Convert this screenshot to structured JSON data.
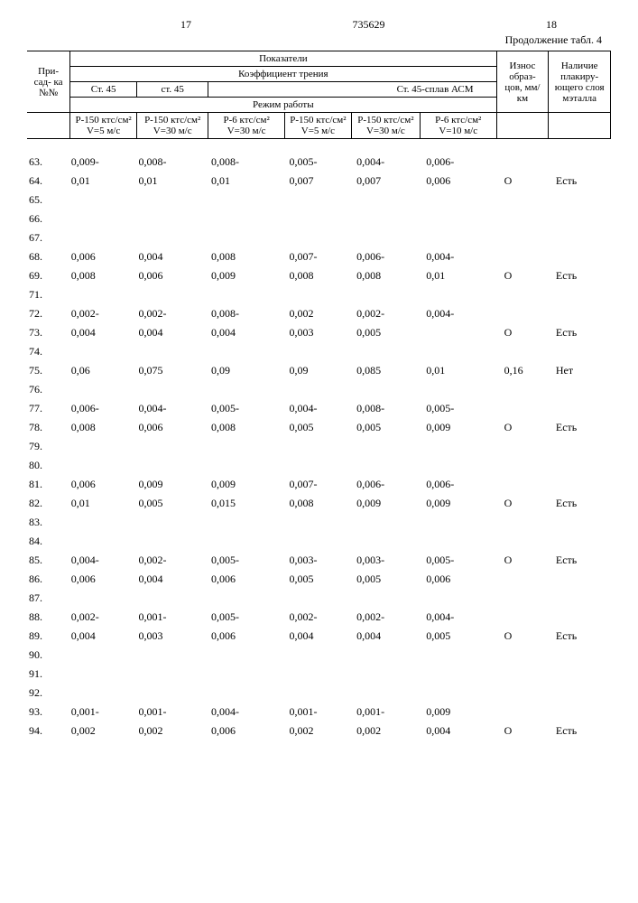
{
  "page_left": "17",
  "doc_num": "735629",
  "page_right": "18",
  "continuation": "Продолжение табл. 4",
  "header": {
    "col_additive": "При-\nсад-\nка\n№№",
    "pokazateli": "Показатели",
    "coef_friction": "Коэффициент трения",
    "wear": "Износ образ-\nцов,\nмм/км",
    "layer": "Наличие плакиру-\nющего\nслоя\nмэталла",
    "st45a": "Ст. 45",
    "st45b": "ст. 45",
    "st45acm": "Ст. 45-сплав АСМ",
    "mode": "Режим работы",
    "m1": "Р-150\nктс/см²\nV=5 м/с",
    "m2": "Р-150\nктс/см²\nV=30 м/с",
    "m3": "Р-6 ктс/см²\nV=30 м/с",
    "m4": "Р-150\nктс/см²\nV=5 м/с",
    "m5": "Р-150\nктс/см²\nV=30 м/с",
    "m6": "Р-6 ктс/см²\nV=10 м/с"
  },
  "rows": [
    [
      "63.",
      "0,009-",
      "0,008-",
      "0,008-",
      "0,005-",
      "0,004-",
      "0,006-",
      "",
      ""
    ],
    [
      "64.",
      "0,01",
      "0,01",
      "0,01",
      "0,007",
      "0,007",
      "0,006",
      "О",
      "Есть"
    ],
    [
      "65.",
      "",
      "",
      "",
      "",
      "",
      "",
      "",
      ""
    ],
    [
      "66.",
      "",
      "",
      "",
      "",
      "",
      "",
      "",
      ""
    ],
    [
      "67.",
      "",
      "",
      "",
      "",
      "",
      "",
      "",
      ""
    ],
    [
      "68.",
      "0,006",
      "0,004",
      "0,008",
      "0,007-",
      "0,006-",
      "0,004-",
      "",
      ""
    ],
    [
      "69.",
      "0,008",
      "0,006",
      "0,009",
      "0,008",
      "0,008",
      "0,01",
      "О",
      "Есть"
    ],
    [
      "71.",
      "",
      "",
      "",
      "",
      "",
      "",
      "",
      ""
    ],
    [
      "72.",
      "0,002-",
      "0,002-",
      "0,008-",
      "0,002",
      "0,002-",
      "0,004-",
      "",
      ""
    ],
    [
      "73.",
      "0,004",
      "0,004",
      "0,004",
      "0,003",
      "0,005",
      "",
      "О",
      "Есть"
    ],
    [
      "74.",
      "",
      "",
      "",
      "",
      "",
      "",
      "",
      ""
    ],
    [
      "75.",
      "0,06",
      "0,075",
      "0,09",
      "0,09",
      "0,085",
      "0,01",
      "0,16",
      "Нет"
    ],
    [
      "76.",
      "",
      "",
      "",
      "",
      "",
      "",
      "",
      ""
    ],
    [
      "77.",
      "0,006-",
      "0,004-",
      "0,005-",
      "0,004-",
      "0,008-",
      "0,005-",
      "",
      ""
    ],
    [
      "78.",
      "0,008",
      "0,006",
      "0,008",
      "0,005",
      "0,005",
      "0,009",
      "О",
      "Есть"
    ],
    [
      "79.",
      "",
      "",
      "",
      "",
      "",
      "",
      "",
      ""
    ],
    [
      "80.",
      "",
      "",
      "",
      "",
      "",
      "",
      "",
      ""
    ],
    [
      "81.",
      "0,006",
      "0,009",
      "0,009",
      "0,007-",
      "0,006-",
      "0,006-",
      "",
      ""
    ],
    [
      "82.",
      "0,01",
      "0,005",
      "0,015",
      "0,008",
      "0,009",
      "0,009",
      "О",
      "Есть"
    ],
    [
      "83.",
      "",
      "",
      "",
      "",
      "",
      "",
      "",
      ""
    ],
    [
      "84.",
      "",
      "",
      "",
      "",
      "",
      "",
      "",
      ""
    ],
    [
      "85.",
      "0,004-",
      "0,002-",
      "0,005-",
      "0,003-",
      "0,003-",
      "0,005-",
      "О",
      "Есть"
    ],
    [
      "86.",
      "0,006",
      "0,004",
      "0,006",
      "0,005",
      "0,005",
      "0,006",
      "",
      ""
    ],
    [
      "87.",
      "",
      "",
      "",
      "",
      "",
      "",
      "",
      ""
    ],
    [
      "88.",
      "0,002-",
      "0,001-",
      "0,005-",
      "0,002-",
      "0,002-",
      "0,004-",
      "",
      ""
    ],
    [
      "89.",
      "0,004",
      "0,003",
      "0,006",
      "0,004",
      "0,004",
      "0,005",
      "О",
      "Есть"
    ],
    [
      "90.",
      "",
      "",
      "",
      "",
      "",
      "",
      "",
      ""
    ],
    [
      "91.",
      "",
      "",
      "",
      "",
      "",
      "",
      "",
      ""
    ],
    [
      "92.",
      "",
      "",
      "",
      "",
      "",
      "",
      "",
      ""
    ],
    [
      "93.",
      "0,001-",
      "0,001-",
      "0,004-",
      "0,001-",
      "0,001-",
      "0,009",
      "",
      ""
    ],
    [
      "94.",
      "0,002",
      "0,002",
      "0,006",
      "0,002",
      "0,002",
      "0,004",
      "О",
      "Есть"
    ]
  ]
}
